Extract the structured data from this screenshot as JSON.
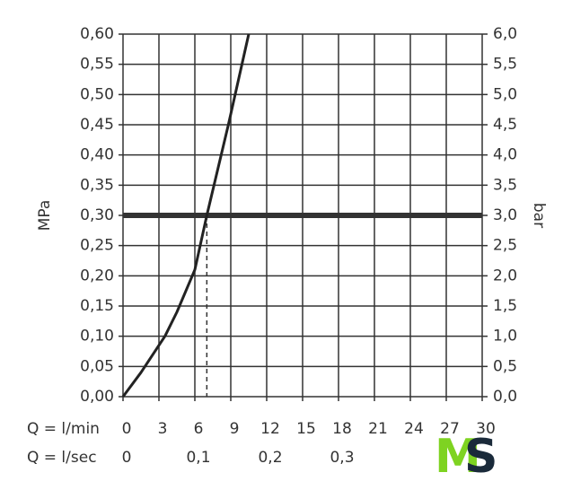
{
  "chart_data": {
    "type": "line",
    "x_label": "Q = l/min",
    "x2_label": "Q = l/sec",
    "y_label": "MPa",
    "y2_label": "bar",
    "x": [
      0,
      1.5,
      3.5,
      4.5,
      6,
      7,
      8.8,
      10.5
    ],
    "values": [
      0,
      0.04,
      0.1,
      0.14,
      0.21,
      0.3,
      0.45,
      0.6
    ],
    "color": "#222222",
    "xlim": [
      0,
      30
    ],
    "xticks": [
      0,
      3,
      6,
      9,
      12,
      15,
      18,
      21,
      24,
      27,
      30
    ],
    "x2lim": [
      0,
      0.5
    ],
    "x2ticks": [
      0,
      {
        "value": 0.1,
        "label": "0,1"
      },
      {
        "value": 0.2,
        "label": "0,2"
      },
      {
        "value": 0.3,
        "label": "0,3"
      }
    ],
    "ylim": [
      0,
      0.6
    ],
    "yticks": [
      {
        "value": 0,
        "label": "0,00"
      },
      {
        "value": 0.05,
        "label": "0,05"
      },
      {
        "value": 0.1,
        "label": "0,10"
      },
      {
        "value": 0.15,
        "label": "0,15"
      },
      {
        "value": 0.2,
        "label": "0,20"
      },
      {
        "value": 0.25,
        "label": "0,25"
      },
      {
        "value": 0.3,
        "label": "0,30"
      },
      {
        "value": 0.35,
        "label": "0,35"
      },
      {
        "value": 0.4,
        "label": "0,40"
      },
      {
        "value": 0.45,
        "label": "0,45"
      },
      {
        "value": 0.5,
        "label": "0,50"
      },
      {
        "value": 0.55,
        "label": "0,55"
      },
      {
        "value": 0.6,
        "label": "0,60"
      }
    ],
    "y2lim": [
      0,
      6
    ],
    "y2ticks": [
      {
        "value": 0,
        "label": "0,0"
      },
      {
        "value": 0.5,
        "label": "0,5"
      },
      {
        "value": 1,
        "label": "1,0"
      },
      {
        "value": 1.5,
        "label": "1,5"
      },
      {
        "value": 2,
        "label": "2,0"
      },
      {
        "value": 2.5,
        "label": "2,5"
      },
      {
        "value": 3,
        "label": "3,0"
      },
      {
        "value": 3.5,
        "label": "3,5"
      },
      {
        "value": 4,
        "label": "4,0"
      },
      {
        "value": 4.5,
        "label": "4,5"
      },
      {
        "value": 5,
        "label": "5,0"
      },
      {
        "value": 5.5,
        "label": "5,5"
      },
      {
        "value": 6,
        "label": "6,0"
      }
    ],
    "grid": true,
    "reference_y": 0.3,
    "reference_x": 7,
    "logo": {
      "first": "M",
      "second": "S"
    }
  }
}
